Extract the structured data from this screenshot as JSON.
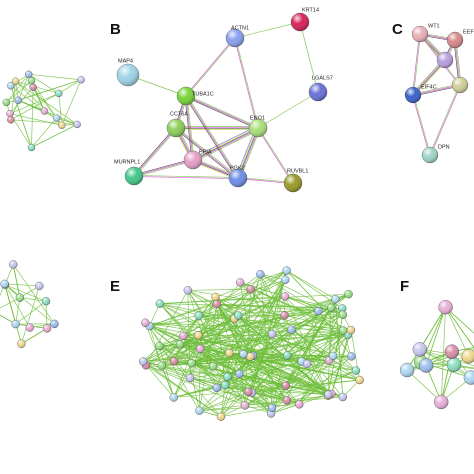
{
  "panels": [
    {
      "label": "B",
      "nodes": [
        {
          "label": "MAP4"
        },
        {
          "label": "ACTN1"
        },
        {
          "label": "KRT14"
        },
        {
          "label": "LGALS7"
        },
        {
          "label": "TUBA1C"
        },
        {
          "label": "CCT6A"
        },
        {
          "label": "ENO1"
        },
        {
          "label": "PPIA"
        },
        {
          "label": "MURNPL1"
        },
        {
          "label": "PGK2"
        },
        {
          "label": "RUVBL1"
        }
      ]
    },
    {
      "label": "C",
      "nodes": [
        {
          "label": "WT1"
        },
        {
          "label": "EEF"
        },
        {
          "label": "EIF4C"
        },
        {
          "label": "DPN"
        }
      ]
    },
    {
      "label": "E",
      "nodes": []
    },
    {
      "label": "F",
      "nodes": []
    }
  ]
}
